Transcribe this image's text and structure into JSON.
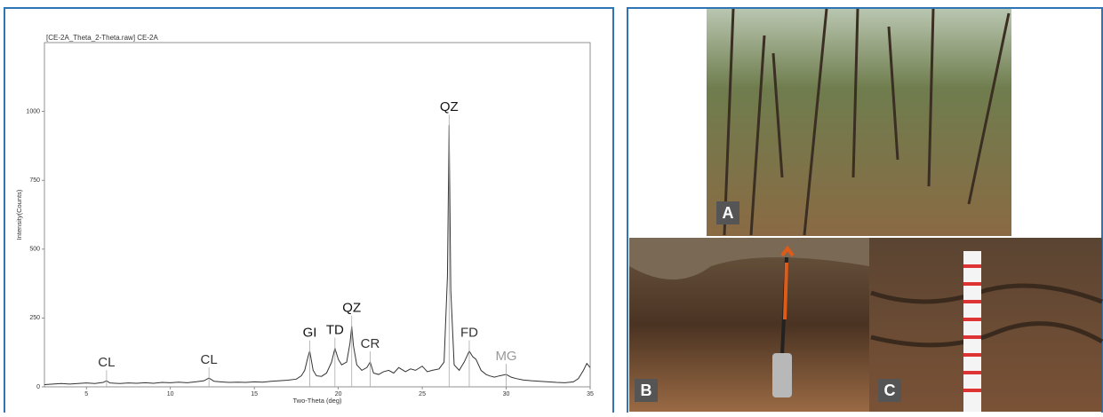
{
  "chart_data": {
    "type": "line",
    "title": "[CE-2A_Theta_2-Theta.raw] CE-2A",
    "x_label": "Two-Theta (deg)",
    "y_label": "Intensity(Counts)",
    "xlim": [
      2.5,
      35
    ],
    "xticks": [
      5,
      10,
      15,
      20,
      25,
      30,
      35
    ],
    "ylim": [
      0,
      1250
    ],
    "yticks": [
      0,
      250,
      500,
      750,
      1000
    ],
    "series": [
      {
        "color": "#333333",
        "x": [
          2.5,
          3,
          3.5,
          4,
          4.5,
          5,
          5.5,
          6,
          6.2,
          6.4,
          7,
          7.5,
          8,
          8.5,
          9,
          9.5,
          10,
          10.5,
          11,
          11.5,
          12,
          12.3,
          12.6,
          13,
          13.5,
          14,
          14.5,
          15,
          15.5,
          16,
          16.5,
          17,
          17.5,
          17.8,
          18,
          18.2,
          18.3,
          18.5,
          18.7,
          19,
          19.3,
          19.6,
          19.8,
          20,
          20.2,
          20.5,
          20.7,
          20.8,
          20.9,
          21.1,
          21.4,
          21.7,
          21.9,
          22.1,
          22.4,
          22.7,
          23,
          23.3,
          23.6,
          24,
          24.3,
          24.6,
          25,
          25.3,
          25.6,
          26,
          26.3,
          26.5,
          26.6,
          26.7,
          26.9,
          27.2,
          27.5,
          27.8,
          28,
          28.2,
          28.5,
          28.8,
          29,
          29.3,
          29.6,
          30,
          30.3,
          30.6,
          31,
          31.5,
          32,
          32.5,
          33,
          33.5,
          34,
          34.3,
          34.6,
          34.8,
          35
        ],
        "values": [
          8,
          10,
          12,
          10,
          12,
          14,
          12,
          16,
          22,
          14,
          12,
          14,
          13,
          15,
          13,
          16,
          15,
          17,
          15,
          18,
          22,
          32,
          20,
          18,
          16,
          17,
          16,
          18,
          17,
          20,
          22,
          24,
          28,
          40,
          60,
          110,
          130,
          60,
          40,
          38,
          50,
          90,
          140,
          100,
          80,
          90,
          160,
          220,
          150,
          80,
          60,
          70,
          90,
          50,
          45,
          55,
          60,
          50,
          70,
          55,
          65,
          60,
          75,
          55,
          60,
          65,
          90,
          400,
          950,
          350,
          80,
          60,
          90,
          130,
          110,
          100,
          60,
          45,
          40,
          35,
          40,
          45,
          35,
          30,
          25,
          22,
          20,
          18,
          16,
          15,
          18,
          30,
          60,
          85,
          70
        ]
      }
    ],
    "annotations": [
      {
        "text": "CL",
        "x": 6.2,
        "color": "#333333"
      },
      {
        "text": "CL",
        "x": 12.3,
        "color": "#333333"
      },
      {
        "text": "GI",
        "x": 18.3,
        "color": "#111111"
      },
      {
        "text": "TD",
        "x": 19.8,
        "color": "#111111"
      },
      {
        "text": "QZ",
        "x": 20.8,
        "color": "#111111"
      },
      {
        "text": "CR",
        "x": 21.9,
        "color": "#333333"
      },
      {
        "text": "QZ",
        "x": 26.6,
        "color": "#111111"
      },
      {
        "text": "FD",
        "x": 27.8,
        "color": "#333333"
      },
      {
        "text": "MG",
        "x": 30,
        "color": "#999999"
      }
    ]
  },
  "photos": {
    "labels": [
      "A",
      "B",
      "C"
    ]
  }
}
